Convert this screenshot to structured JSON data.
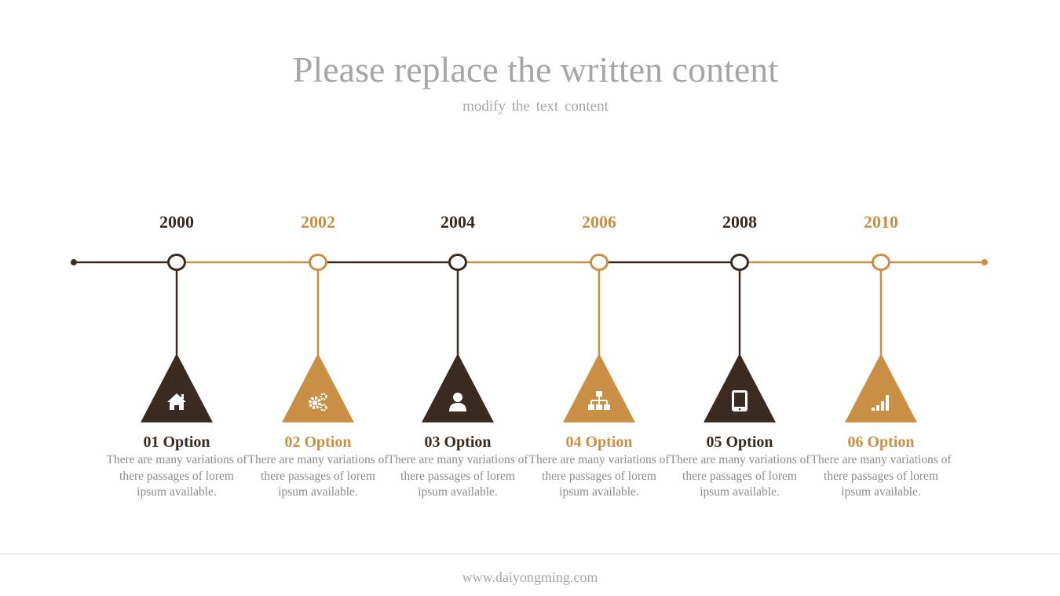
{
  "header": {
    "title": "Please replace the written content",
    "subtitle": "modify the text content"
  },
  "colors": {
    "dark": "#3b2a20",
    "gold": "#c98f45"
  },
  "items": [
    {
      "year": "2000",
      "title": "01 Option",
      "desc": "There are many variations of there passages of lorem ipsum available.",
      "color": "dark",
      "icon": "home-icon"
    },
    {
      "year": "2002",
      "title": "02 Option",
      "desc": "There are many variations of there passages of lorem ipsum available.",
      "color": "gold",
      "icon": "gears-icon"
    },
    {
      "year": "2004",
      "title": "03 Option",
      "desc": "There are many variations of there passages of lorem ipsum available.",
      "color": "dark",
      "icon": "user-icon"
    },
    {
      "year": "2006",
      "title": "04 Option",
      "desc": "There are many variations of there passages of lorem ipsum available.",
      "color": "gold",
      "icon": "sitemap-icon"
    },
    {
      "year": "2008",
      "title": "05 Option",
      "desc": "There are many variations of there passages of lorem ipsum available.",
      "color": "dark",
      "icon": "tablet-icon"
    },
    {
      "year": "2010",
      "title": "06 Option",
      "desc": "There are many variations of there passages of lorem ipsum available.",
      "color": "gold",
      "icon": "signal-icon"
    }
  ],
  "footer": {
    "url": "www.daiyongming.com"
  }
}
